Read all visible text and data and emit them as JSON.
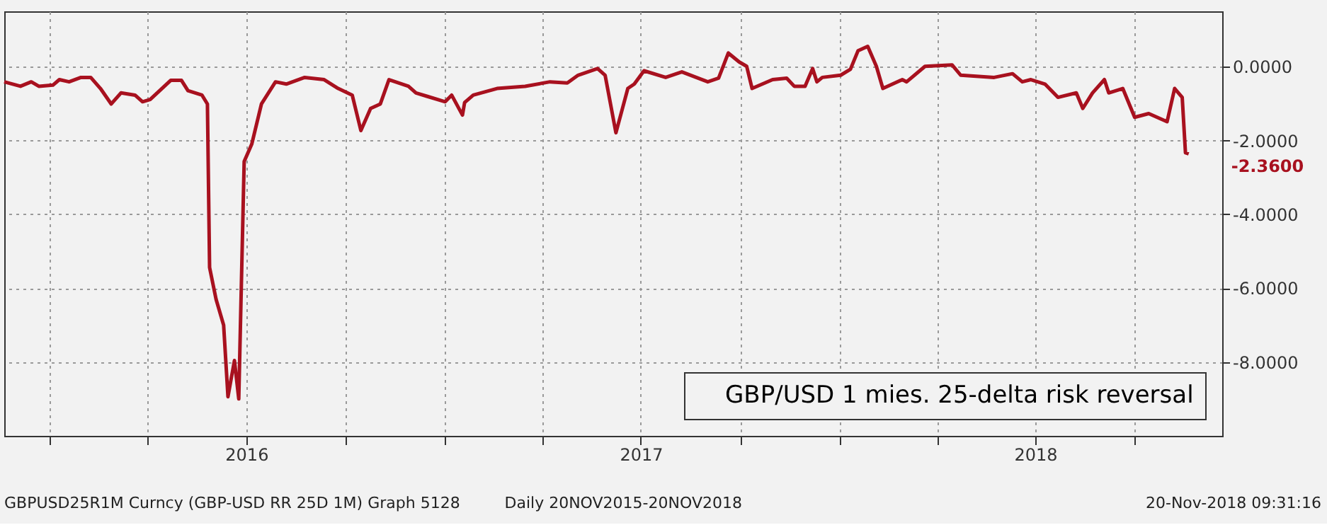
{
  "chart_data": {
    "type": "line",
    "x": [
      "2015-11-20",
      "2015-12-05",
      "2015-12-15",
      "2015-12-22",
      "2016-01-04",
      "2016-01-10",
      "2016-01-19",
      "2016-01-30",
      "2016-02-08",
      "2016-02-17",
      "2016-02-27",
      "2016-03-07",
      "2016-03-20",
      "2016-03-27",
      "2016-04-03",
      "2016-04-22",
      "2016-05-02",
      "2016-05-08",
      "2016-05-21",
      "2016-05-26",
      "2016-05-28",
      "2016-06-03",
      "2016-06-10",
      "2016-06-14",
      "2016-06-20",
      "2016-06-24",
      "2016-06-29",
      "2016-07-06",
      "2016-07-15",
      "2016-07-28",
      "2016-08-07",
      "2016-08-24",
      "2016-09-11",
      "2016-09-24",
      "2016-10-07",
      "2016-10-15",
      "2016-10-24",
      "2016-11-02",
      "2016-11-10",
      "2016-11-28",
      "2016-12-05",
      "2016-12-15",
      "2017-01-01",
      "2017-01-07",
      "2017-01-17",
      "2017-01-19",
      "2017-01-27",
      "2017-02-18",
      "2017-03-16",
      "2017-04-08",
      "2017-04-24",
      "2017-05-04",
      "2017-05-22",
      "2017-05-29",
      "2017-06-08",
      "2017-06-19",
      "2017-06-25",
      "2017-07-04",
      "2017-07-24",
      "2017-08-08",
      "2017-09-01",
      "2017-09-11",
      "2017-09-20",
      "2017-09-30",
      "2017-10-07",
      "2017-10-12",
      "2017-10-31",
      "2017-11-13",
      "2017-11-20",
      "2017-11-30",
      "2017-12-07",
      "2017-12-11",
      "2017-12-16",
      "2018-01-02",
      "2018-01-11",
      "2018-01-18",
      "2018-01-27",
      "2018-02-04",
      "2018-02-10",
      "2018-02-28",
      "2018-03-04",
      "2018-03-21",
      "2018-04-15",
      "2018-04-23",
      "2018-05-24",
      "2018-06-10",
      "2018-06-19",
      "2018-06-27",
      "2018-07-10",
      "2018-07-22",
      "2018-08-08",
      "2018-08-14",
      "2018-08-23",
      "2018-09-03",
      "2018-09-07",
      "2018-09-20",
      "2018-10-01",
      "2018-10-14",
      "2018-10-31",
      "2018-11-07",
      "2018-11-14",
      "2018-11-17",
      "2018-11-20"
    ],
    "series": [
      {
        "name": "GBP/USD 1 mies. 25-delta risk reversal",
        "color": "#a8111f",
        "values": [
          -0.41,
          -0.53,
          -0.41,
          -0.53,
          -0.5,
          -0.35,
          -0.41,
          -0.29,
          -0.29,
          -0.59,
          -1.01,
          -0.71,
          -0.77,
          -0.95,
          -0.89,
          -0.37,
          -0.37,
          -0.65,
          -0.77,
          -1.01,
          -5.44,
          -6.3,
          -7.0,
          -8.94,
          -7.96,
          -9.0,
          -2.57,
          -2.1,
          -1.01,
          -0.41,
          -0.47,
          -0.29,
          -0.35,
          -0.59,
          -0.77,
          -1.73,
          -1.13,
          -1.01,
          -0.35,
          -0.53,
          -0.71,
          -0.8,
          -0.95,
          -0.77,
          -1.31,
          -0.97,
          -0.77,
          -0.59,
          -0.53,
          -0.41,
          -0.44,
          -0.23,
          -0.05,
          -0.23,
          -1.79,
          -0.59,
          -0.47,
          -0.11,
          -0.29,
          -0.14,
          -0.41,
          -0.31,
          0.37,
          0.13,
          0.01,
          -0.59,
          -0.35,
          -0.31,
          -0.53,
          -0.53,
          -0.05,
          -0.41,
          -0.29,
          -0.23,
          -0.07,
          0.43,
          0.55,
          0.01,
          -0.59,
          -0.35,
          -0.41,
          0.01,
          0.05,
          -0.23,
          -0.29,
          -0.19,
          -0.41,
          -0.35,
          -0.47,
          -0.83,
          -0.71,
          -1.13,
          -0.71,
          -0.35,
          -0.71,
          -0.59,
          -1.37,
          -1.27,
          -1.49,
          -0.59,
          -0.83,
          -2.33,
          -2.36
        ]
      }
    ],
    "xlim": [
      "2015-11-20",
      "2018-12-21"
    ],
    "xticks": [
      {
        "value": "2016-01-01",
        "label": null
      },
      {
        "value": "2016-04-01",
        "label": null
      },
      {
        "value": "2016-07-01",
        "label": "2016"
      },
      {
        "value": "2016-10-01",
        "label": null
      },
      {
        "value": "2017-01-01",
        "label": null
      },
      {
        "value": "2017-04-01",
        "label": null
      },
      {
        "value": "2017-07-01",
        "label": "2017"
      },
      {
        "value": "2017-10-01",
        "label": null
      },
      {
        "value": "2018-01-01",
        "label": null
      },
      {
        "value": "2018-04-01",
        "label": null
      },
      {
        "value": "2018-07-01",
        "label": "2018"
      },
      {
        "value": "2018-10-01",
        "label": null
      }
    ],
    "ylim": [
      -10,
      1.5
    ],
    "yticks": [
      {
        "value": -8,
        "label": "-8.0000"
      },
      {
        "value": -6,
        "label": "-6.0000"
      },
      {
        "value": -4,
        "label": "-4.0000"
      },
      {
        "value": -2,
        "label": "-2.0000"
      },
      {
        "value": 0,
        "label": "0.0000"
      }
    ],
    "grid": true,
    "legend": "bottom right",
    "annotations": [
      {
        "text": "-2.3600",
        "x": "2018-11-20",
        "y": -2.36
      },
      "GBPUSD25R1M Curncy (GBP-USD RR 25D 1M) Graph 5128",
      "Daily 20NOV2015-20NOV2018",
      "20-Nov-2018 09:31:16"
    ]
  }
}
